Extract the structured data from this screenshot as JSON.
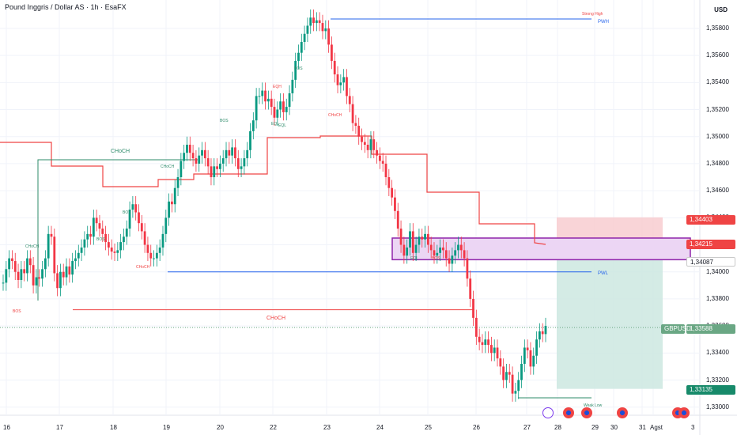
{
  "header": {
    "title": "Pound Inggris / Dollar AS · 1h · EsaFX",
    "currency": "USD"
  },
  "chart_data": {
    "type": "candlestick",
    "symbol": "GBPUSD",
    "ylim": [
      1.3294,
      1.3601
    ],
    "y_ticks": [
      "1,33000",
      "1,33200",
      "1,33400",
      "1,33600",
      "1,33800",
      "1,34000",
      "1,34200",
      "1,34400",
      "1,34600",
      "1,34800",
      "1,35000",
      "1,35200",
      "1,35400",
      "1,35600",
      "1,35800"
    ],
    "x_ticks": [
      "16",
      "17",
      "18",
      "19",
      "20",
      "22",
      "23",
      "24",
      "25",
      "26",
      "27",
      "28",
      "29",
      "30",
      "31",
      "Agst",
      "3"
    ],
    "price_tags": [
      {
        "value": "1,34403",
        "color": "#ef4444"
      },
      {
        "value": "1,34215",
        "color": "#ef4444"
      },
      {
        "value": "1,34087",
        "color": "#ffffff"
      },
      {
        "value": "1,33588",
        "color": "#6aa784"
      },
      {
        "value": "1,33135",
        "color": "#178a6a"
      }
    ],
    "symbol_tag": "GBPUSD",
    "annotations": {
      "choch_green": "CHoCH",
      "choch_red": "CHoCH",
      "pwh": "PWH",
      "pwl": "PWL",
      "strong_high": "Strong High",
      "weak_low": "Weak Low",
      "bos": "BOS",
      "eql": "EQL",
      "eqh": "EQH"
    },
    "series": [
      {
        "name": "close",
        "values": [
          1.3392,
          1.3402,
          1.341,
          1.3408,
          1.34,
          1.3394,
          1.3402,
          1.3399,
          1.341,
          1.3405,
          1.339,
          1.3396,
          1.3395,
          1.3402,
          1.341,
          1.3428,
          1.3426,
          1.3399,
          1.3388,
          1.34,
          1.3396,
          1.3404,
          1.3398,
          1.3408,
          1.341,
          1.3414,
          1.3418,
          1.3424,
          1.3428,
          1.3426,
          1.344,
          1.3436,
          1.3432,
          1.3428,
          1.3422,
          1.3418,
          1.3415,
          1.3414,
          1.3416,
          1.3422,
          1.3426,
          1.3432,
          1.3446,
          1.345,
          1.3444,
          1.3436,
          1.343,
          1.342,
          1.3414,
          1.341,
          1.341,
          1.3414,
          1.3418,
          1.3428,
          1.344,
          1.3452,
          1.345,
          1.3462,
          1.347,
          1.3482,
          1.3488,
          1.3494,
          1.3488,
          1.3484,
          1.348,
          1.3486,
          1.349,
          1.3484,
          1.3478,
          1.347,
          1.3478,
          1.3476,
          1.348,
          1.3484,
          1.349,
          1.3486,
          1.3492,
          1.3484,
          1.3476,
          1.3478,
          1.3484,
          1.349,
          1.3504,
          1.3512,
          1.353,
          1.353,
          1.3534,
          1.3526,
          1.3528,
          1.3522,
          1.3514,
          1.352,
          1.3526,
          1.3518,
          1.3522,
          1.3532,
          1.3542,
          1.3556,
          1.3562,
          1.357,
          1.3576,
          1.3582,
          1.3588,
          1.3584,
          1.3586,
          1.3584,
          1.3578,
          1.358,
          1.3568,
          1.3556,
          1.3546,
          1.3538,
          1.354,
          1.3544,
          1.353,
          1.3524,
          1.351,
          1.3508,
          1.35,
          1.3496,
          1.3494,
          1.349,
          1.3498,
          1.349,
          1.3486,
          1.3482,
          1.348,
          1.347,
          1.3462,
          1.3455,
          1.3445,
          1.3432,
          1.342,
          1.3412,
          1.3418,
          1.343,
          1.3414,
          1.342,
          1.3426,
          1.3424,
          1.3428,
          1.342,
          1.3416,
          1.3412,
          1.3414,
          1.3418,
          1.3416,
          1.341,
          1.3406,
          1.3412,
          1.3416,
          1.342,
          1.3416,
          1.341,
          1.3395,
          1.338,
          1.3366,
          1.3352,
          1.3348,
          1.3346,
          1.335,
          1.3346,
          1.334,
          1.3344,
          1.3336,
          1.333,
          1.332,
          1.3326,
          1.3324,
          1.331,
          1.3312,
          1.332,
          1.3332,
          1.3344,
          1.3342,
          1.333,
          1.3338,
          1.335,
          1.3356,
          1.3354,
          1.336
        ]
      }
    ]
  }
}
